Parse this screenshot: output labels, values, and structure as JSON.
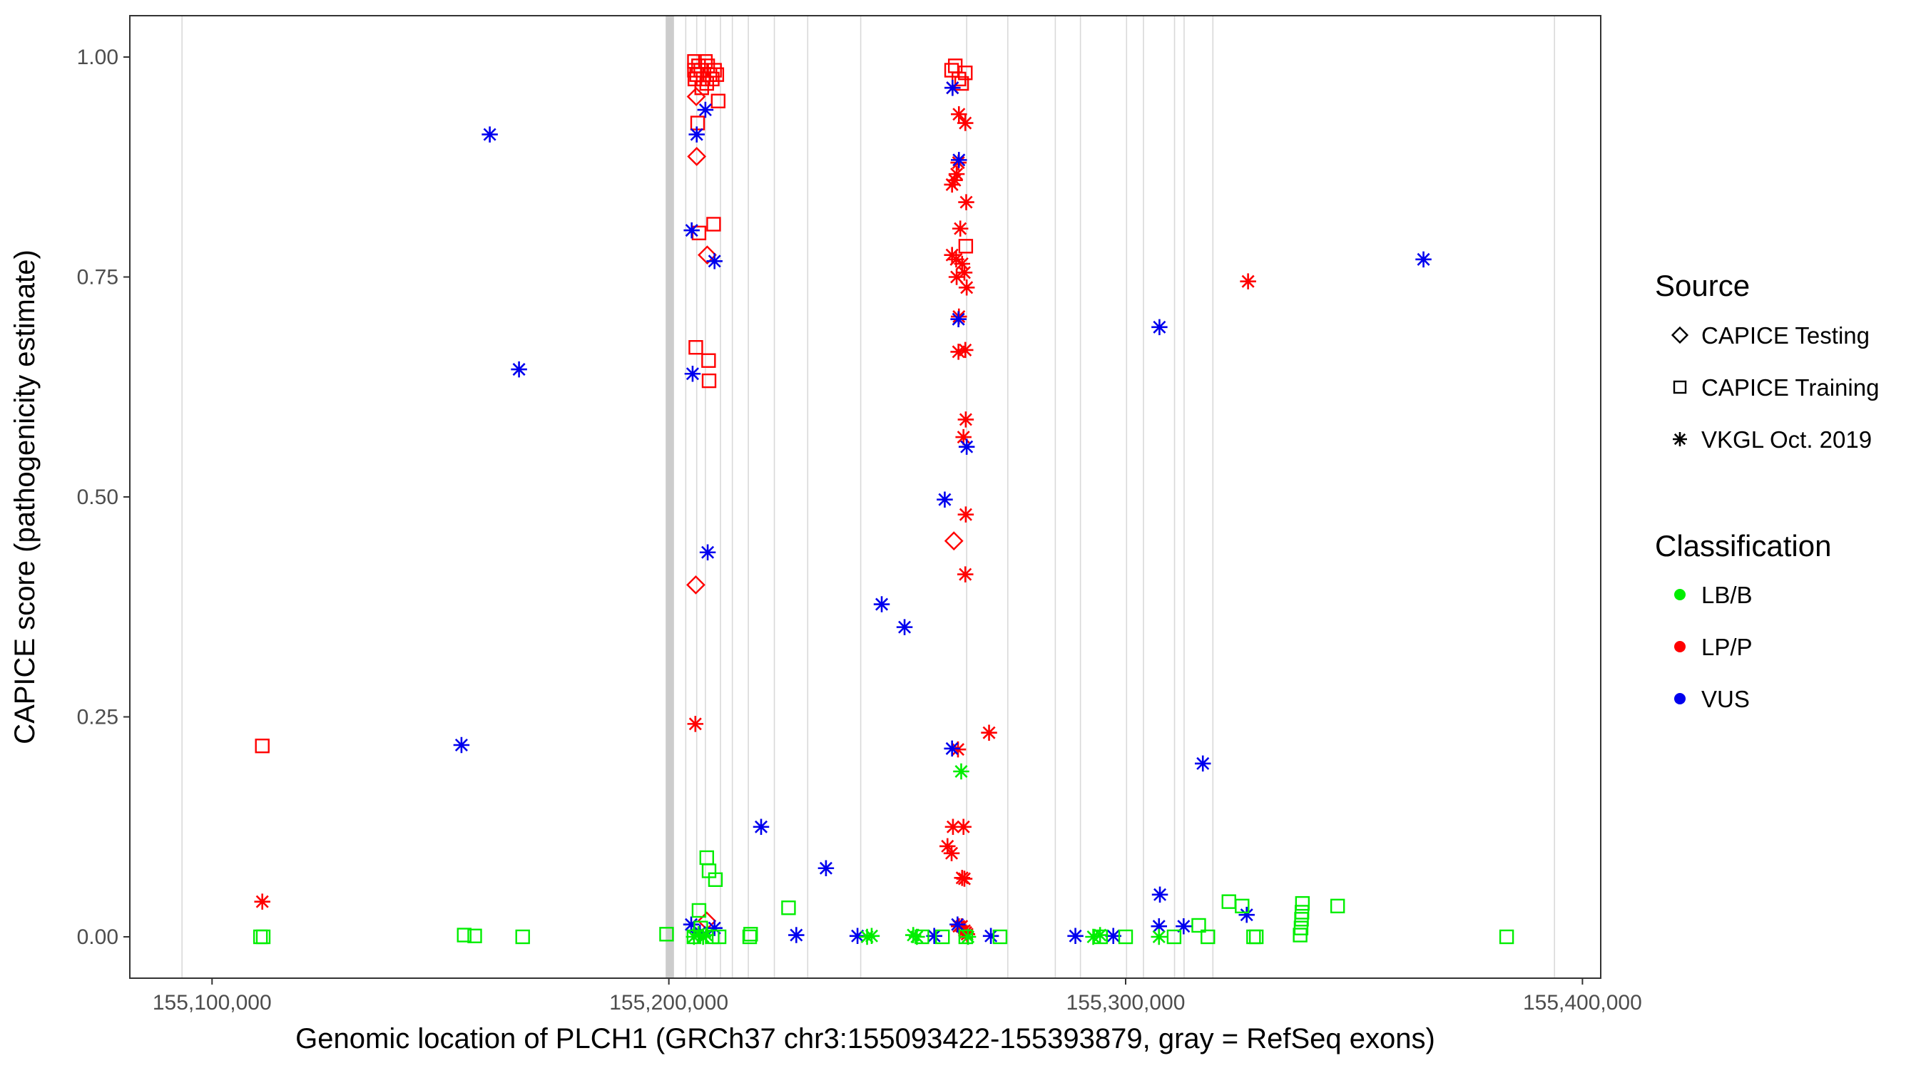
{
  "chart_data": {
    "type": "scatter",
    "xlabel": "Genomic location of PLCH1 (GRCh37 chr3:155093422-155393879, gray = RefSeq exons)",
    "ylabel": "CAPICE score (pathogenicity estimate)",
    "xlim": [
      155082000,
      155404000
    ],
    "ylim": [
      -0.047,
      1.047
    ],
    "x_ticks": [
      155100000,
      155200000,
      155300000,
      155400000
    ],
    "x_tick_labels": [
      "155,100,000",
      "155,200,000",
      "155,300,000",
      "155,400,000"
    ],
    "y_ticks": [
      0,
      0.25,
      0.5,
      0.75,
      1
    ],
    "y_tick_labels": [
      "0.00",
      "0.25",
      "0.50",
      "0.75",
      "1.00"
    ],
    "grid": "vertical lines only",
    "legend_placement": "right",
    "exon_positions": [
      155093422,
      155199600,
      155200050,
      155200500,
      155201000,
      155203700,
      155206100,
      155208000,
      155211300,
      155213900,
      155217400,
      155223100,
      155230400,
      155242000,
      155265200,
      155274200,
      155284600,
      155290100,
      155300200,
      155303900,
      155310700,
      155312800,
      155319100,
      155393879
    ],
    "legend": {
      "source_title": "Source",
      "source_entries": [
        {
          "label": "CAPICE Testing",
          "shape": "diamond"
        },
        {
          "label": "CAPICE Training",
          "shape": "square"
        },
        {
          "label": "VKGL Oct. 2019",
          "shape": "asterisk"
        }
      ],
      "class_title": "Classification",
      "class_entries": [
        {
          "label": "LB/B",
          "color": "#00ee00"
        },
        {
          "label": "LP/P",
          "color": "#ff0000"
        },
        {
          "label": "VUS",
          "color": "#0000ee"
        }
      ]
    },
    "colors": {
      "LB/B": "#00ee00",
      "LP/P": "#ff0000",
      "VUS": "#0000ee"
    },
    "series": [
      {
        "classification": "LP/P",
        "source": "CAPICE Training",
        "points": [
          [
            155111000,
            0.217
          ],
          [
            155205600,
            0.995
          ],
          [
            155205600,
            0.985
          ],
          [
            155205700,
            0.975
          ],
          [
            155206100,
            0.98
          ],
          [
            155206500,
            0.99
          ],
          [
            155207000,
            0.985
          ],
          [
            155207500,
            0.975
          ],
          [
            155208000,
            0.995
          ],
          [
            155208500,
            0.99
          ],
          [
            155209000,
            0.98
          ],
          [
            155209500,
            0.975
          ],
          [
            155210000,
            0.985
          ],
          [
            155210500,
            0.98
          ],
          [
            155207200,
            0.965
          ],
          [
            155208300,
            0.97
          ],
          [
            155210800,
            0.95
          ],
          [
            155206300,
            0.925
          ],
          [
            155209800,
            0.81
          ],
          [
            155206600,
            0.8
          ],
          [
            155205900,
            0.67
          ],
          [
            155208700,
            0.655
          ],
          [
            155208800,
            0.632
          ],
          [
            155261900,
            0.985
          ],
          [
            155262700,
            0.99
          ],
          [
            155263500,
            0.975
          ],
          [
            155264100,
            0.97
          ],
          [
            155264900,
            0.982
          ],
          [
            155265000,
            0.785
          ]
        ]
      },
      {
        "classification": "LP/P",
        "source": "CAPICE Testing",
        "points": [
          [
            155206000,
            0.955
          ],
          [
            155206100,
            0.887
          ],
          [
            155208400,
            0.775
          ],
          [
            155205900,
            0.4
          ],
          [
            155262400,
            0.45
          ],
          [
            155208300,
            0.018
          ]
        ]
      },
      {
        "classification": "LP/P",
        "source": "VKGL Oct. 2019",
        "points": [
          [
            155111000,
            0.04
          ],
          [
            155205800,
            0.242
          ],
          [
            155262100,
            0.965
          ],
          [
            155263500,
            0.935
          ],
          [
            155264900,
            0.925
          ],
          [
            155263400,
            0.88
          ],
          [
            155263000,
            0.867
          ],
          [
            155262600,
            0.86
          ],
          [
            155262000,
            0.855
          ],
          [
            155265100,
            0.835
          ],
          [
            155263800,
            0.805
          ],
          [
            155262000,
            0.775
          ],
          [
            155262900,
            0.77
          ],
          [
            155264200,
            0.765
          ],
          [
            155263000,
            0.75
          ],
          [
            155264700,
            0.755
          ],
          [
            155265200,
            0.738
          ],
          [
            155263500,
            0.705
          ],
          [
            155263400,
            0.665
          ],
          [
            155264900,
            0.667
          ],
          [
            155265000,
            0.588
          ],
          [
            155264500,
            0.568
          ],
          [
            155265000,
            0.48
          ],
          [
            155264900,
            0.412
          ],
          [
            155270100,
            0.232
          ],
          [
            155263300,
            0.213
          ],
          [
            155262200,
            0.125
          ],
          [
            155264500,
            0.125
          ],
          [
            155261000,
            0.103
          ],
          [
            155261900,
            0.095
          ],
          [
            155264200,
            0.067
          ],
          [
            155264700,
            0.066
          ],
          [
            155263500,
            0.012
          ],
          [
            155264100,
            0.012
          ],
          [
            155264700,
            0.007
          ],
          [
            155265000,
            0.005
          ],
          [
            155265300,
            0.003
          ],
          [
            155326800,
            0.745
          ]
        ]
      },
      {
        "classification": "VUS",
        "source": "VKGL Oct. 2019",
        "points": [
          [
            155160800,
            0.912
          ],
          [
            155154600,
            0.218
          ],
          [
            155167200,
            0.645
          ],
          [
            155208000,
            0.94
          ],
          [
            155206100,
            0.912
          ],
          [
            155205000,
            0.803
          ],
          [
            155210000,
            0.768
          ],
          [
            155205200,
            0.64
          ],
          [
            155208500,
            0.437
          ],
          [
            155204900,
            0.014
          ],
          [
            155206800,
            0.005
          ],
          [
            155210000,
            0.01
          ],
          [
            155220200,
            0.125
          ],
          [
            155227900,
            0.002
          ],
          [
            155234400,
            0.078
          ],
          [
            155241300,
            0.001
          ],
          [
            155246600,
            0.378
          ],
          [
            155251600,
            0.352
          ],
          [
            155258100,
            0.001
          ],
          [
            155262100,
            0.965
          ],
          [
            155263500,
            0.883
          ],
          [
            155260400,
            0.497
          ],
          [
            155263400,
            0.702
          ],
          [
            155265200,
            0.557
          ],
          [
            155262000,
            0.214
          ],
          [
            155263200,
            0.014
          ],
          [
            155270500,
            0.001
          ],
          [
            155289000,
            0.001
          ],
          [
            155297300,
            0.001
          ],
          [
            155307400,
            0.693
          ],
          [
            155307500,
            0.048
          ],
          [
            155307300,
            0.012
          ],
          [
            155312700,
            0.012
          ],
          [
            155316900,
            0.197
          ],
          [
            155326500,
            0.025
          ],
          [
            155365200,
            0.77
          ]
        ]
      },
      {
        "classification": "LB/B",
        "source": "CAPICE Training",
        "points": [
          [
            155110600,
            0.0
          ],
          [
            155111200,
            0.0
          ],
          [
            155155200,
            0.002
          ],
          [
            155157500,
            0.001
          ],
          [
            155168000,
            0.0
          ],
          [
            155199500,
            0.003
          ],
          [
            155205500,
            0.0
          ],
          [
            155206600,
            0.03
          ],
          [
            155208300,
            0.09
          ],
          [
            155208800,
            0.075
          ],
          [
            155210200,
            0.065
          ],
          [
            155207000,
            0.01
          ],
          [
            155209500,
            0.0
          ],
          [
            155211000,
            0.0
          ],
          [
            155217700,
            0.0
          ],
          [
            155217900,
            0.003
          ],
          [
            155226200,
            0.033
          ],
          [
            155255400,
            0.0
          ],
          [
            155259900,
            0.0
          ],
          [
            155265000,
            0.0
          ],
          [
            155272500,
            0.0
          ],
          [
            155294500,
            0.0
          ],
          [
            155300000,
            0.0
          ],
          [
            155310600,
            0.0
          ],
          [
            155316000,
            0.013
          ],
          [
            155318000,
            0.0
          ],
          [
            155322600,
            0.04
          ],
          [
            155325500,
            0.035
          ],
          [
            155328000,
            0.0
          ],
          [
            155328600,
            0.0
          ],
          [
            155338200,
            0.002
          ],
          [
            155338400,
            0.01
          ],
          [
            155338500,
            0.02
          ],
          [
            155338600,
            0.028
          ],
          [
            155338700,
            0.038
          ],
          [
            155346400,
            0.035
          ],
          [
            155383400,
            0.0
          ]
        ]
      },
      {
        "classification": "LB/B",
        "source": "VKGL Oct. 2019",
        "points": [
          [
            155205500,
            0.0
          ],
          [
            155206500,
            0.003
          ],
          [
            155207500,
            0.0
          ],
          [
            155208200,
            0.002
          ],
          [
            155243400,
            0.0
          ],
          [
            155244400,
            0.001
          ],
          [
            155253500,
            0.002
          ],
          [
            155254300,
            0.0
          ],
          [
            155264000,
            0.188
          ],
          [
            155265500,
            0.0
          ],
          [
            155292900,
            0.0
          ],
          [
            155294400,
            0.002
          ],
          [
            155307300,
            0.0
          ]
        ]
      }
    ]
  }
}
